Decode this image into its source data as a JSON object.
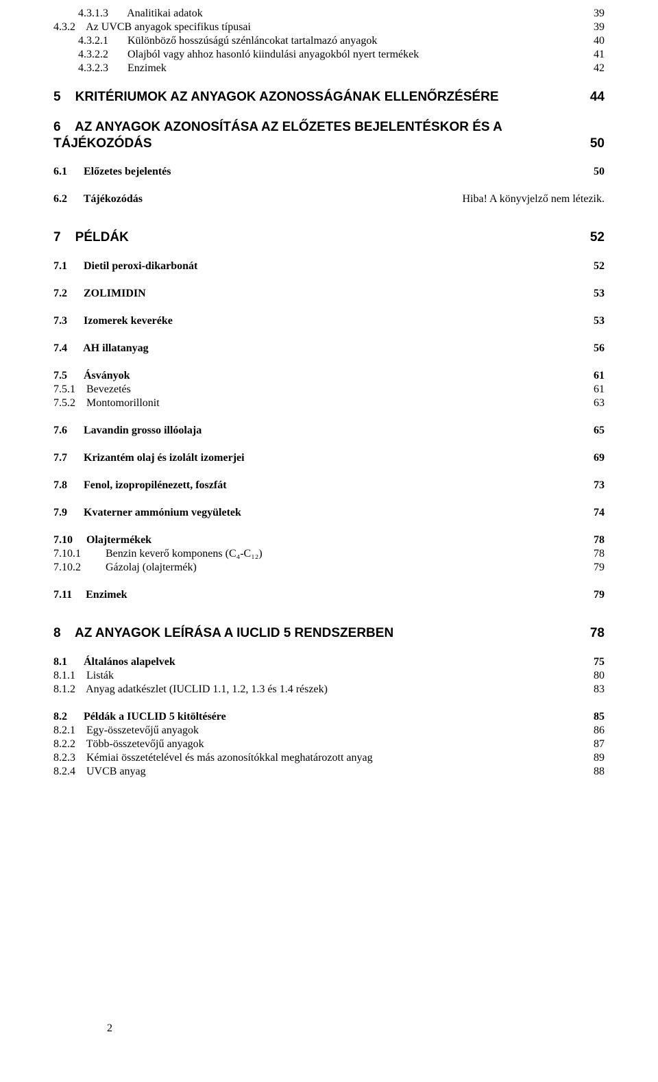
{
  "lines": [
    {
      "indent": 2,
      "label": "4.3.1.3       Analitikai adatok",
      "page": "39",
      "bold": false,
      "heading": false
    },
    {
      "indent": 1,
      "label": "4.3.2    Az UVCB anyagok specifikus típusai",
      "page": "39",
      "bold": false,
      "heading": false
    },
    {
      "indent": 2,
      "label": "4.3.2.1       Különböző hosszúságú szénláncokat tartalmazó anyagok",
      "page": "40",
      "bold": false,
      "heading": false
    },
    {
      "indent": 2,
      "label": "4.3.2.2       Olajból vagy ahhoz hasonló kiindulási anyagokból nyert termékek",
      "page": "41",
      "bold": false,
      "heading": false
    },
    {
      "indent": 2,
      "label": "4.3.2.3       Enzimek",
      "page": "42",
      "bold": false,
      "heading": false
    },
    {
      "gap": "med"
    },
    {
      "indent": 1,
      "label": "5    KRITÉRIUMOK AZ ANYAGOK AZONOSSÁGÁNAK ELLENŐRZÉSÉRE",
      "page": "44",
      "bold": true,
      "heading": true
    },
    {
      "gap": "med"
    },
    {
      "indent": 1,
      "label": "6    AZ ANYAGOK AZONOSÍTÁSA AZ ELŐZETES BEJELENTÉSKOR ÉS A",
      "page": "",
      "bold": true,
      "heading": true,
      "nopagenum": true
    },
    {
      "indent": 1,
      "label": "TÁJÉKOZÓDÁS",
      "page": "50",
      "bold": true,
      "heading": true
    },
    {
      "gap": "med"
    },
    {
      "indent": 1,
      "label": "6.1      Előzetes bejelentés",
      "page": "50",
      "bold": true,
      "heading": false
    },
    {
      "gap": "med"
    },
    {
      "indent": 1,
      "label": "6.2      Tájékozódás",
      "page": "Hiba! A könyvjelző nem létezik.",
      "bold": true,
      "heading": false,
      "errorpage": true
    },
    {
      "gap": "large"
    },
    {
      "indent": 1,
      "label": "7    PÉLDÁK",
      "page": "52",
      "bold": true,
      "heading": true
    },
    {
      "gap": "med"
    },
    {
      "indent": 1,
      "label": "7.1      Dietil peroxi-dikarbonát",
      "page": "52",
      "bold": true,
      "heading": false
    },
    {
      "gap": "med"
    },
    {
      "indent": 1,
      "label": "7.2      ZOLIMIDIN",
      "page": "53",
      "bold": true,
      "heading": false
    },
    {
      "gap": "med"
    },
    {
      "indent": 1,
      "label": "7.3      Izomerek keveréke",
      "page": "53",
      "bold": true,
      "heading": false
    },
    {
      "gap": "med"
    },
    {
      "indent": 1,
      "label": "7.4      AH illatanyag",
      "page": "56",
      "bold": true,
      "heading": false
    },
    {
      "gap": "med"
    },
    {
      "indent": 1,
      "label": "7.5      Ásványok",
      "page": "61",
      "bold": true,
      "heading": false
    },
    {
      "indent": 1,
      "label": "7.5.1    Bevezetés",
      "page": "61",
      "bold": false,
      "heading": false
    },
    {
      "indent": 1,
      "label": "7.5.2    Montomorillonit",
      "page": "63",
      "bold": false,
      "heading": false
    },
    {
      "gap": "med"
    },
    {
      "indent": 1,
      "label": "7.6      Lavandin grosso illóolaja",
      "page": "65",
      "bold": true,
      "heading": false
    },
    {
      "gap": "med"
    },
    {
      "indent": 1,
      "label": "7.7      Krizantém olaj és izolált izomerjei",
      "page": "69",
      "bold": true,
      "heading": false
    },
    {
      "gap": "med"
    },
    {
      "indent": 1,
      "label": "7.8      Fenol, izopropilénezett, foszfát",
      "page": "73",
      "bold": true,
      "heading": false
    },
    {
      "gap": "med"
    },
    {
      "indent": 1,
      "label": "7.9      Kvaterner ammónium vegyületek",
      "page": "74",
      "bold": true,
      "heading": false
    },
    {
      "gap": "med"
    },
    {
      "indent": 1,
      "label": "7.10     Olajtermékek",
      "page": "78",
      "bold": true,
      "heading": false
    },
    {
      "indent": 1,
      "label": "7.10.1         Benzin keverő komponens (C₄-C₁₂)",
      "page": "78",
      "bold": false,
      "heading": false
    },
    {
      "indent": 1,
      "label": "7.10.2         Gázolaj (olajtermék)",
      "page": "79",
      "bold": false,
      "heading": false
    },
    {
      "gap": "med"
    },
    {
      "indent": 1,
      "label": "7.11     Enzimek",
      "page": "79",
      "bold": true,
      "heading": false
    },
    {
      "gap": "large"
    },
    {
      "indent": 1,
      "label": "8    AZ ANYAGOK LEÍRÁSA A IUCLID 5 RENDSZERBEN",
      "page": "78",
      "bold": true,
      "heading": true
    },
    {
      "gap": "med"
    },
    {
      "indent": 1,
      "label": "8.1      Általános alapelvek",
      "page": "75",
      "bold": true,
      "heading": false
    },
    {
      "indent": 1,
      "label": "8.1.1    Listák",
      "page": "80",
      "bold": false,
      "heading": false
    },
    {
      "indent": 1,
      "label": "8.1.2    Anyag adatkészlet (IUCLID 1.1, 1.2, 1.3 és 1.4 részek)",
      "page": "83",
      "bold": false,
      "heading": false
    },
    {
      "gap": "med"
    },
    {
      "indent": 1,
      "label": "8.2      Példák a IUCLID 5 kitöltésére",
      "page": "85",
      "bold": true,
      "heading": false
    },
    {
      "indent": 1,
      "label": "8.2.1    Egy-összetevőjű anyagok",
      "page": "86",
      "bold": false,
      "heading": false
    },
    {
      "indent": 1,
      "label": "8.2.2    Több-összetevőjű anyagok",
      "page": "87",
      "bold": false,
      "heading": false
    },
    {
      "indent": 1,
      "label": "8.2.3    Kémiai összetételével és más azonosítókkal meghatározott anyag",
      "page": "89",
      "bold": false,
      "heading": false
    },
    {
      "indent": 1,
      "label": "8.2.4    UVCB anyag",
      "page": "88",
      "bold": false,
      "heading": false
    }
  ],
  "footer_page": "2"
}
